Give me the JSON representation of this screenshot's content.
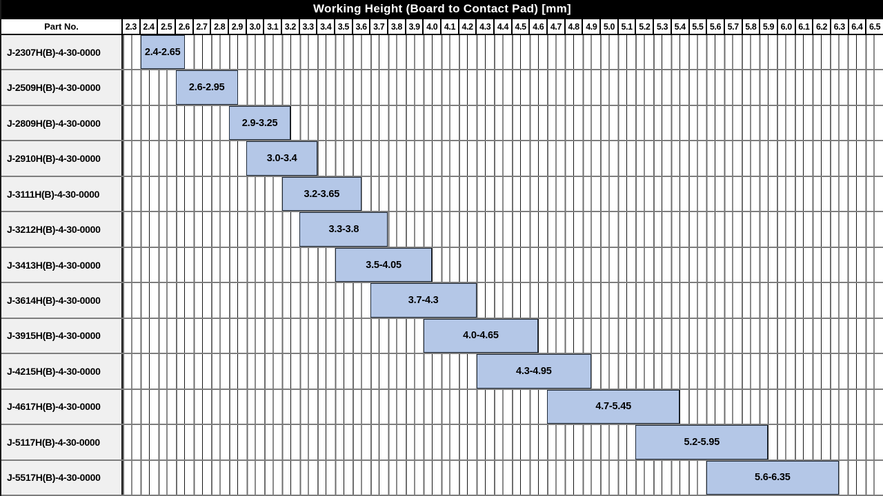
{
  "title": "Working Height (Board to Contact Pad) [mm]",
  "part_no_header": "Part No.",
  "colors": {
    "title_bg": "#000000",
    "title_text": "#ffffff",
    "bar_fill": "#b4c7e7",
    "bar_border": "#1f2a38",
    "label_cell_bg": "#f0f0f0",
    "row_separator": "#7d7d7d",
    "grid_major_line": "#6e6e6e",
    "grid_minor_line": "#141414",
    "header_border": "#000000"
  },
  "chart_data": {
    "type": "bar",
    "variant": "horizontal_range",
    "title": "Working Height (Board to Contact Pad) [mm]",
    "legend": "none",
    "grid": "on",
    "axis": {
      "min": 2.3,
      "max": 6.6,
      "major_step": 0.1,
      "minor_step": 0.05,
      "tick_labels": [
        "2.3",
        "2.4",
        "2.5",
        "2.6",
        "2.7",
        "2.8",
        "2.9",
        "3.0",
        "3.1",
        "3.2",
        "3.3",
        "3.4",
        "3.5",
        "3.6",
        "3.7",
        "3.8",
        "3.9",
        "4.0",
        "4.1",
        "4.2",
        "4.3",
        "4.4",
        "4.5",
        "4.6",
        "4.7",
        "4.8",
        "4.9",
        "5.0",
        "5.1",
        "5.2",
        "5.3",
        "5.4",
        "5.5",
        "5.6",
        "5.7",
        "5.8",
        "5.9",
        "6.0",
        "6.1",
        "6.2",
        "6.3",
        "6.4",
        "6.5"
      ]
    },
    "rows": [
      {
        "part_no": "J-2307H(B)-4-30-0000",
        "start": 2.4,
        "end": 2.65,
        "range_label": "2.4-2.65"
      },
      {
        "part_no": "J-2509H(B)-4-30-0000",
        "start": 2.6,
        "end": 2.95,
        "range_label": "2.6-2.95"
      },
      {
        "part_no": "J-2809H(B)-4-30-0000",
        "start": 2.9,
        "end": 3.25,
        "range_label": "2.9-3.25"
      },
      {
        "part_no": "J-2910H(B)-4-30-0000",
        "start": 3.0,
        "end": 3.4,
        "range_label": "3.0-3.4"
      },
      {
        "part_no": "J-3111H(B)-4-30-0000",
        "start": 3.2,
        "end": 3.65,
        "range_label": "3.2-3.65"
      },
      {
        "part_no": "J-3212H(B)-4-30-0000",
        "start": 3.3,
        "end": 3.8,
        "range_label": "3.3-3.8"
      },
      {
        "part_no": "J-3413H(B)-4-30-0000",
        "start": 3.5,
        "end": 4.05,
        "range_label": "3.5-4.05"
      },
      {
        "part_no": "J-3614H(B)-4-30-0000",
        "start": 3.7,
        "end": 4.3,
        "range_label": "3.7-4.3"
      },
      {
        "part_no": "J-3915H(B)-4-30-0000",
        "start": 4.0,
        "end": 4.65,
        "range_label": "4.0-4.65"
      },
      {
        "part_no": "J-4215H(B)-4-30-0000",
        "start": 4.3,
        "end": 4.95,
        "range_label": "4.3-4.95"
      },
      {
        "part_no": "J-4617H(B)-4-30-0000",
        "start": 4.7,
        "end": 5.45,
        "range_label": "4.7-5.45"
      },
      {
        "part_no": "J-5117H(B)-4-30-0000",
        "start": 5.2,
        "end": 5.95,
        "range_label": "5.2-5.95"
      },
      {
        "part_no": "J-5517H(B)-4-30-0000",
        "start": 5.6,
        "end": 6.35,
        "range_label": "5.6-6.35"
      }
    ]
  }
}
